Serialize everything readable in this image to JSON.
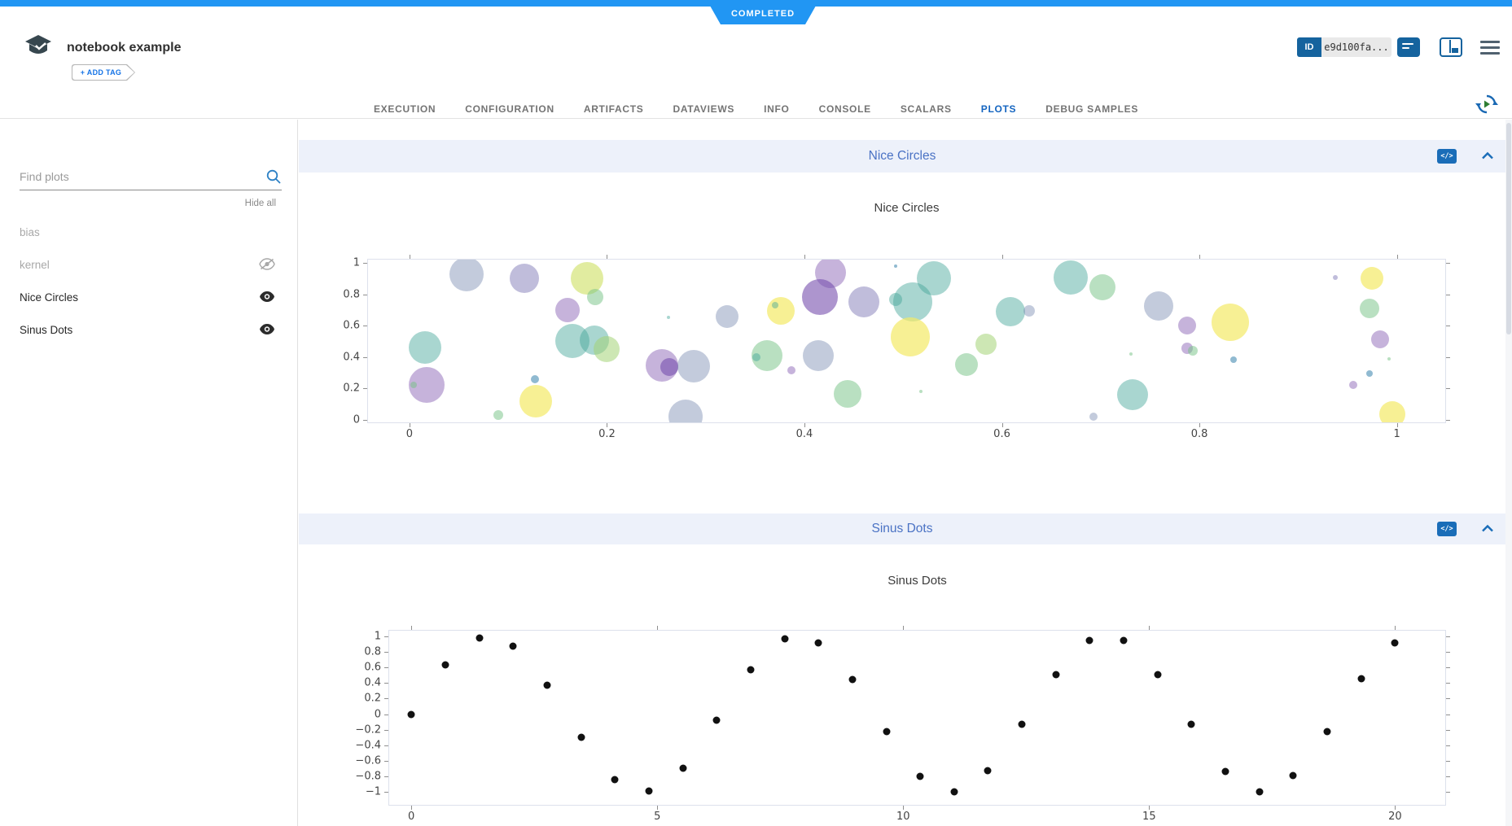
{
  "header": {
    "status": "COMPLETED",
    "title": "notebook example",
    "add_tag": "+ ADD TAG",
    "id_label": "ID",
    "id_value": "e9d100fa...",
    "accent_blue": "#2196f3"
  },
  "tabs": [
    {
      "label": "EXECUTION",
      "active": false
    },
    {
      "label": "CONFIGURATION",
      "active": false
    },
    {
      "label": "ARTIFACTS",
      "active": false
    },
    {
      "label": "DATAVIEWS",
      "active": false
    },
    {
      "label": "INFO",
      "active": false
    },
    {
      "label": "CONSOLE",
      "active": false
    },
    {
      "label": "SCALARS",
      "active": false
    },
    {
      "label": "PLOTS",
      "active": true
    },
    {
      "label": "DEBUG SAMPLES",
      "active": false
    }
  ],
  "sidebar": {
    "search_placeholder": "Find plots",
    "hide_all": "Hide all",
    "items": [
      {
        "label": "bias",
        "muted": true,
        "icon": "none"
      },
      {
        "label": "kernel",
        "muted": true,
        "icon": "eye-off"
      },
      {
        "label": "Nice Circles",
        "muted": false,
        "icon": "eye"
      },
      {
        "label": "Sinus Dots",
        "muted": false,
        "icon": "eye"
      }
    ]
  },
  "sections": [
    {
      "header": "Nice Circles"
    },
    {
      "header": "Sinus Dots"
    }
  ],
  "chart_data": [
    {
      "type": "scatter",
      "subtype": "bubble",
      "title": "Nice Circles",
      "xlabel": "",
      "ylabel": "",
      "xlim": [
        -0.042,
        1.049
      ],
      "ylim": [
        -0.016,
        1.021
      ],
      "x_ticks": [
        0,
        0.2,
        0.4,
        0.6,
        0.8,
        1
      ],
      "y_ticks": [
        0,
        0.2,
        0.4,
        0.6,
        0.8,
        1
      ],
      "grid": false,
      "legend": "none",
      "palette": {
        "teal": "rgba(64,164,151,0.45)",
        "green": "rgba(116,194,131,0.5)",
        "lightGreen": "rgba(164,212,118,0.55)",
        "yellowGreen": "rgba(205,223,96,0.6)",
        "yellow": "rgba(244,234,103,0.7)",
        "blueGray": "rgba(122,139,178,0.45)",
        "purpleBlue": "rgba(129,124,184,0.5)",
        "purple": "rgba(142,103,184,0.5)",
        "darkPurple": "rgba(118,78,173,0.6)",
        "steelBlue": "rgba(70,140,178,0.6)"
      },
      "points": [
        {
          "x": 0.058,
          "y": 0.93,
          "r": 21,
          "c": "blueGray"
        },
        {
          "x": 0.116,
          "y": 0.9,
          "r": 18,
          "c": "purpleBlue"
        },
        {
          "x": 0.18,
          "y": 0.9,
          "r": 20,
          "c": "yellowGreen"
        },
        {
          "x": 0.188,
          "y": 0.78,
          "r": 10,
          "c": "green"
        },
        {
          "x": 0.16,
          "y": 0.7,
          "r": 15,
          "c": "purple"
        },
        {
          "x": 0.016,
          "y": 0.46,
          "r": 20,
          "c": "teal"
        },
        {
          "x": 0.017,
          "y": 0.22,
          "r": 22,
          "c": "purple"
        },
        {
          "x": 0.004,
          "y": 0.225,
          "r": 4,
          "c": "green"
        },
        {
          "x": 0.165,
          "y": 0.5,
          "r": 21,
          "c": "teal"
        },
        {
          "x": 0.187,
          "y": 0.51,
          "r": 18,
          "c": "teal"
        },
        {
          "x": 0.2,
          "y": 0.45,
          "r": 16,
          "c": "lightGreen"
        },
        {
          "x": 0.127,
          "y": 0.26,
          "r": 5,
          "c": "steelBlue"
        },
        {
          "x": 0.128,
          "y": 0.12,
          "r": 20,
          "c": "yellow"
        },
        {
          "x": 0.09,
          "y": 0.03,
          "r": 6,
          "c": "green"
        },
        {
          "x": 0.262,
          "y": 0.655,
          "r": 2,
          "c": "teal"
        },
        {
          "x": 0.256,
          "y": 0.345,
          "r": 20,
          "c": "purple"
        },
        {
          "x": 0.263,
          "y": 0.335,
          "r": 11,
          "c": "darkPurple"
        },
        {
          "x": 0.288,
          "y": 0.34,
          "r": 20,
          "c": "blueGray"
        },
        {
          "x": 0.28,
          "y": 0.02,
          "r": 21,
          "c": "blueGray"
        },
        {
          "x": 0.322,
          "y": 0.657,
          "r": 14,
          "c": "blueGray"
        },
        {
          "x": 0.362,
          "y": 0.407,
          "r": 19,
          "c": "green"
        },
        {
          "x": 0.351,
          "y": 0.4,
          "r": 5,
          "c": "teal"
        },
        {
          "x": 0.387,
          "y": 0.315,
          "r": 5,
          "c": "purple"
        },
        {
          "x": 0.376,
          "y": 0.693,
          "r": 17,
          "c": "yellow"
        },
        {
          "x": 0.37,
          "y": 0.73,
          "r": 4,
          "c": "teal"
        },
        {
          "x": 0.414,
          "y": 0.41,
          "r": 19,
          "c": "blueGray"
        },
        {
          "x": 0.426,
          "y": 0.937,
          "r": 19,
          "c": "purple"
        },
        {
          "x": 0.416,
          "y": 0.784,
          "r": 22,
          "c": "darkPurple"
        },
        {
          "x": 0.444,
          "y": 0.163,
          "r": 17,
          "c": "green"
        },
        {
          "x": 0.46,
          "y": 0.75,
          "r": 19,
          "c": "purpleBlue"
        },
        {
          "x": 0.492,
          "y": 0.982,
          "r": 2,
          "c": "steelBlue"
        },
        {
          "x": 0.51,
          "y": 0.75,
          "r": 24,
          "c": "teal"
        },
        {
          "x": 0.492,
          "y": 0.765,
          "r": 8,
          "c": "teal"
        },
        {
          "x": 0.531,
          "y": 0.902,
          "r": 21,
          "c": "teal"
        },
        {
          "x": 0.507,
          "y": 0.53,
          "r": 24,
          "c": "yellow"
        },
        {
          "x": 0.609,
          "y": 0.688,
          "r": 18,
          "c": "teal"
        },
        {
          "x": 0.628,
          "y": 0.693,
          "r": 7,
          "c": "blueGray"
        },
        {
          "x": 0.584,
          "y": 0.482,
          "r": 13,
          "c": "lightGreen"
        },
        {
          "x": 0.564,
          "y": 0.354,
          "r": 14,
          "c": "green"
        },
        {
          "x": 0.518,
          "y": 0.18,
          "r": 2,
          "c": "green"
        },
        {
          "x": 0.67,
          "y": 0.907,
          "r": 21,
          "c": "teal"
        },
        {
          "x": 0.702,
          "y": 0.845,
          "r": 16,
          "c": "green"
        },
        {
          "x": 0.759,
          "y": 0.723,
          "r": 18,
          "c": "blueGray"
        },
        {
          "x": 0.788,
          "y": 0.6,
          "r": 11,
          "c": "purple"
        },
        {
          "x": 0.831,
          "y": 0.623,
          "r": 23,
          "c": "yellow"
        },
        {
          "x": 0.788,
          "y": 0.456,
          "r": 7,
          "c": "purple"
        },
        {
          "x": 0.793,
          "y": 0.438,
          "r": 6,
          "c": "green"
        },
        {
          "x": 0.731,
          "y": 0.42,
          "r": 2,
          "c": "green"
        },
        {
          "x": 0.835,
          "y": 0.381,
          "r": 4,
          "c": "steelBlue"
        },
        {
          "x": 0.732,
          "y": 0.161,
          "r": 19,
          "c": "teal"
        },
        {
          "x": 0.693,
          "y": 0.018,
          "r": 5,
          "c": "blueGray"
        },
        {
          "x": 0.938,
          "y": 0.907,
          "r": 3,
          "c": "purpleBlue"
        },
        {
          "x": 0.975,
          "y": 0.901,
          "r": 14,
          "c": "yellow"
        },
        {
          "x": 0.972,
          "y": 0.708,
          "r": 12,
          "c": "green"
        },
        {
          "x": 0.983,
          "y": 0.512,
          "r": 11,
          "c": "purple"
        },
        {
          "x": 0.992,
          "y": 0.388,
          "r": 2,
          "c": "green"
        },
        {
          "x": 0.972,
          "y": 0.293,
          "r": 4,
          "c": "steelBlue"
        },
        {
          "x": 0.956,
          "y": 0.225,
          "r": 5,
          "c": "purple"
        },
        {
          "x": 0.995,
          "y": 0.037,
          "r": 16,
          "c": "yellow"
        }
      ]
    },
    {
      "type": "scatter",
      "subtype": "dots",
      "title": "Sinus Dots",
      "xlabel": "",
      "ylabel": "",
      "xlim": [
        -0.45,
        21.02
      ],
      "ylim": [
        -1.166,
        1.073
      ],
      "x_ticks": [
        0,
        5,
        10,
        15,
        20
      ],
      "y_ticks": [
        1,
        0.8,
        0.6,
        0.4,
        0.2,
        0,
        -0.2,
        -0.4,
        -0.6,
        -0.8,
        -1
      ],
      "grid": false,
      "legend": "none",
      "marker_color": "#111111",
      "marker_r": 4.5,
      "points": [
        [
          0,
          0
        ],
        [
          0.69,
          0.636
        ],
        [
          1.38,
          0.982
        ],
        [
          2.07,
          0.878
        ],
        [
          2.76,
          0.374
        ],
        [
          3.45,
          -0.302
        ],
        [
          4.14,
          -0.84
        ],
        [
          4.83,
          -0.993
        ],
        [
          5.52,
          -0.692
        ],
        [
          6.21,
          -0.076
        ],
        [
          6.9,
          0.576
        ],
        [
          7.59,
          0.968
        ],
        [
          8.28,
          0.917
        ],
        [
          8.97,
          0.448
        ],
        [
          9.66,
          -0.227
        ],
        [
          10.34,
          -0.797
        ],
        [
          11.03,
          -0.999
        ],
        [
          11.72,
          -0.73
        ],
        [
          12.41,
          -0.129
        ],
        [
          13.1,
          0.513
        ],
        [
          13.79,
          0.947
        ],
        [
          14.48,
          0.945
        ],
        [
          15.17,
          0.508
        ],
        [
          15.86,
          -0.135
        ],
        [
          16.55,
          -0.734
        ],
        [
          17.24,
          -0.999
        ],
        [
          17.93,
          -0.794
        ],
        [
          18.62,
          -0.221
        ],
        [
          19.31,
          0.452
        ],
        [
          20,
          0.913
        ]
      ]
    }
  ]
}
